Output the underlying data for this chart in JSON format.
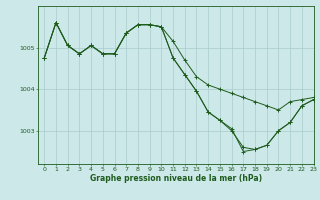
{
  "title": "Graphe pression niveau de la mer (hPa)",
  "background_color": "#cce8e8",
  "grid_color": "#aacccc",
  "line_color": "#1e5c1e",
  "xlim": [
    -0.5,
    23
  ],
  "ylim": [
    1002.2,
    1006.0
  ],
  "yticks": [
    1003,
    1004,
    1005
  ],
  "xticks": [
    0,
    1,
    2,
    3,
    4,
    5,
    6,
    7,
    8,
    9,
    10,
    11,
    12,
    13,
    14,
    15,
    16,
    17,
    18,
    19,
    20,
    21,
    22,
    23
  ],
  "series": [
    [
      1004.75,
      1005.6,
      1005.05,
      1004.85,
      1005.05,
      1004.85,
      1004.85,
      1005.35,
      1005.55,
      1005.55,
      1005.5,
      1005.15,
      1004.7,
      1004.3,
      1004.1,
      1004.0,
      1003.9,
      1003.8,
      1003.7,
      1003.6,
      1003.5,
      1003.7,
      1003.75,
      1003.8
    ],
    [
      1004.75,
      1005.6,
      1005.05,
      1004.85,
      1005.05,
      1004.85,
      1004.85,
      1005.35,
      1005.55,
      1005.55,
      1005.5,
      1004.75,
      1004.35,
      1003.95,
      1003.45,
      1003.25,
      1003.0,
      1002.6,
      1002.55,
      1002.65,
      1003.0,
      1003.2,
      1003.6,
      1003.75
    ],
    [
      1004.75,
      1005.6,
      1005.05,
      1004.85,
      1005.05,
      1004.85,
      1004.85,
      1005.35,
      1005.55,
      1005.55,
      1005.5,
      1004.75,
      1004.35,
      1003.95,
      1003.45,
      1003.25,
      1003.05,
      1002.5,
      1002.55,
      1002.65,
      1003.0,
      1003.2,
      1003.6,
      1003.75
    ]
  ]
}
